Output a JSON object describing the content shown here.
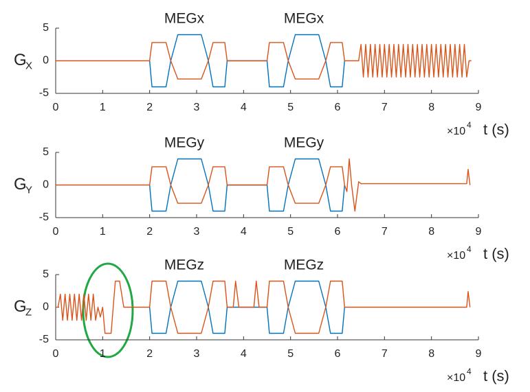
{
  "chart_data": [
    {
      "type": "line",
      "annotations": [
        "MEGx",
        "MEGx"
      ],
      "ylabel": "G",
      "ylabel_sub": "X",
      "x_multiplier": "×10",
      "x_exponent": "4",
      "xlabel": "t (s)",
      "xlim": [
        0,
        9
      ],
      "xticks": [
        0,
        1,
        2,
        3,
        4,
        5,
        6,
        7,
        8,
        9
      ],
      "ylim": [
        -5,
        5
      ],
      "yticks": [
        -5,
        0,
        5
      ],
      "grid": false,
      "series": [
        {
          "color": "#0072bd",
          "x": [
            2,
            2.05,
            2.35,
            2.45,
            2.6,
            3.1,
            3.25,
            3.35,
            3.6,
            3.65,
            4.5,
            4.55,
            4.85,
            4.95,
            5.1,
            5.6,
            5.75,
            5.85,
            6.1,
            6.15
          ],
          "values": [
            0,
            -4,
            -4,
            0,
            4,
            4,
            0,
            -4,
            -4,
            0,
            0,
            -4,
            -4,
            0,
            4,
            4,
            0,
            -4,
            -4,
            0
          ]
        },
        {
          "color": "#d95319",
          "x": [
            0,
            2,
            2.05,
            2.35,
            2.45,
            2.6,
            3.1,
            3.25,
            3.35,
            3.6,
            3.65,
            4.5,
            4.55,
            4.85,
            4.95,
            5.1,
            5.6,
            5.75,
            5.85,
            6.1,
            6.15,
            6.45,
            6.5,
            6.55,
            6.6,
            6.65,
            6.7,
            6.75,
            6.8,
            6.85,
            6.9,
            6.95,
            7,
            7.05,
            7.1,
            7.15,
            7.2,
            7.25,
            7.3,
            7.35,
            7.4,
            7.45,
            7.5,
            7.55,
            7.6,
            7.65,
            7.7,
            7.75,
            7.8,
            7.85,
            7.9,
            7.95,
            8,
            8.05,
            8.1,
            8.15,
            8.2,
            8.25,
            8.3,
            8.35,
            8.4,
            8.45,
            8.5,
            8.55,
            8.6,
            8.65,
            8.7,
            8.75,
            8.8,
            8.85
          ],
          "values": [
            0,
            0,
            2.8,
            2.8,
            0,
            -2.8,
            -2.8,
            0,
            2.8,
            2.8,
            0,
            0,
            2.8,
            2.8,
            0,
            -2.8,
            -2.8,
            0,
            2.8,
            2.8,
            0,
            0,
            2.5,
            -2.5,
            2.5,
            -2.5,
            2.5,
            -2.5,
            2.5,
            -2.5,
            2.5,
            -2.5,
            2.5,
            -2.5,
            2.5,
            -2.5,
            2.5,
            -2.5,
            2.5,
            -2.5,
            2.5,
            -2.5,
            2.5,
            -2.5,
            2.5,
            -2.5,
            2.5,
            -2.5,
            2.5,
            -2.5,
            2.5,
            -2.5,
            2.5,
            -2.5,
            2.5,
            -2.5,
            2.5,
            -2.5,
            2.5,
            -2.5,
            2.5,
            -2.5,
            2.5,
            -2.5,
            2.5,
            -2.5,
            2.5,
            -2.5,
            0,
            0
          ]
        }
      ]
    },
    {
      "type": "line",
      "annotations": [
        "MEGy",
        "MEGy"
      ],
      "ylabel": "G",
      "ylabel_sub": "Y",
      "x_multiplier": "×10",
      "x_exponent": "4",
      "xlabel": "t (s)",
      "xlim": [
        0,
        9
      ],
      "xticks": [
        0,
        1,
        2,
        3,
        4,
        5,
        6,
        7,
        8,
        9
      ],
      "ylim": [
        -5,
        5
      ],
      "yticks": [
        -5,
        0,
        5
      ],
      "grid": false,
      "series": [
        {
          "color": "#0072bd",
          "x": [
            2,
            2.05,
            2.35,
            2.45,
            2.6,
            3.1,
            3.25,
            3.35,
            3.6,
            3.65,
            4.5,
            4.55,
            4.85,
            4.95,
            5.1,
            5.6,
            5.75,
            5.85,
            6.1,
            6.15
          ],
          "values": [
            0,
            -4,
            -4,
            0,
            4,
            4,
            0,
            -4,
            -4,
            0,
            0,
            -4,
            -4,
            0,
            4,
            4,
            0,
            -4,
            -4,
            0
          ]
        },
        {
          "color": "#d95319",
          "x": [
            0,
            2,
            2.05,
            2.35,
            2.45,
            2.6,
            3.1,
            3.25,
            3.35,
            3.6,
            3.65,
            4.5,
            4.55,
            4.85,
            4.95,
            5.1,
            5.6,
            5.75,
            5.85,
            6.1,
            6.15,
            6.2,
            6.25,
            6.3,
            6.37,
            6.45,
            6.5,
            8.75,
            8.78,
            8.82
          ],
          "values": [
            0,
            0,
            2.8,
            2.8,
            0,
            -2.8,
            -2.8,
            0,
            2.8,
            2.8,
            0,
            0,
            2.8,
            2.8,
            0,
            -2.8,
            -2.8,
            0,
            2.8,
            2.8,
            0,
            -1,
            4,
            0,
            -4,
            0.5,
            0.2,
            0.2,
            2.4,
            0
          ]
        }
      ]
    },
    {
      "type": "line",
      "annotations": [
        "MEGz",
        "MEGz"
      ],
      "ylabel": "G",
      "ylabel_sub": "Z",
      "x_multiplier": "×10",
      "x_exponent": "4",
      "xlabel": "t (s)",
      "xlim": [
        0,
        9
      ],
      "xticks": [
        0,
        1,
        2,
        3,
        4,
        5,
        6,
        7,
        8,
        9
      ],
      "ylim": [
        -5,
        5
      ],
      "yticks": [
        -5,
        0,
        5
      ],
      "grid": false,
      "series": [
        {
          "color": "#0072bd",
          "x": [
            2,
            2.05,
            2.35,
            2.45,
            2.6,
            3.1,
            3.25,
            3.35,
            3.6,
            3.65,
            4.5,
            4.55,
            4.85,
            4.95,
            5.1,
            5.6,
            5.75,
            5.85,
            6.1,
            6.15
          ],
          "values": [
            0,
            -4,
            -4,
            0,
            4,
            4,
            0,
            -4,
            -4,
            0,
            0,
            -4,
            -4,
            0,
            4,
            4,
            0,
            -4,
            -4,
            0
          ]
        },
        {
          "color": "#d95319",
          "x": [
            0,
            0.05,
            0.1,
            0.15,
            0.2,
            0.25,
            0.3,
            0.35,
            0.4,
            0.45,
            0.5,
            0.55,
            0.6,
            0.65,
            0.7,
            0.75,
            0.8,
            0.85,
            0.9,
            0.95,
            1,
            1.05,
            1.18,
            1.27,
            1.36,
            1.45,
            2,
            2.05,
            2.35,
            2.45,
            2.6,
            3.1,
            3.25,
            3.35,
            3.6,
            3.65,
            3.78,
            3.83,
            3.9,
            4.22,
            4.27,
            4.33,
            4.5,
            4.55,
            4.85,
            4.95,
            5.1,
            5.6,
            5.75,
            5.85,
            6.1,
            6.15,
            8.75,
            8.78,
            8.82
          ],
          "values": [
            0,
            0,
            2,
            -2,
            2,
            -2,
            2,
            -2,
            2,
            -2,
            2,
            -2,
            2,
            -2,
            2,
            -2,
            2,
            -2,
            0,
            -1.5,
            0,
            -4,
            -4,
            4,
            4,
            0,
            0,
            4,
            4,
            0,
            -4,
            -4,
            0,
            4,
            4,
            0,
            0,
            4,
            0,
            0,
            4,
            0,
            0,
            4,
            4,
            0,
            -4,
            -4,
            0,
            4,
            4,
            0,
            0,
            2.4,
            0
          ]
        }
      ]
    }
  ]
}
